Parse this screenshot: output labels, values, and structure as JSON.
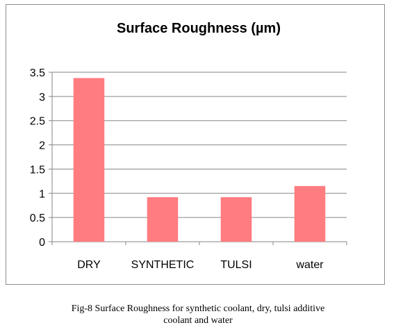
{
  "chart_data": {
    "type": "bar",
    "title": "Surface Roughness (µm)",
    "categories": [
      "DRY",
      "SYNTHETIC",
      "TULSI",
      "water"
    ],
    "values": [
      3.38,
      0.92,
      0.92,
      1.15
    ],
    "ylim": [
      0,
      3.5
    ],
    "yticks": [
      "0",
      "0.5",
      "1",
      "1.5",
      "2",
      "2.5",
      "3",
      "3.5"
    ],
    "xlabel": "",
    "ylabel": "",
    "grid": true,
    "legend": "none",
    "bar_color": "#ff7c80"
  },
  "caption": {
    "line1": "Fig-8 Surface Roughness for synthetic coolant, dry, tulsi additive",
    "line2": "coolant and water"
  }
}
